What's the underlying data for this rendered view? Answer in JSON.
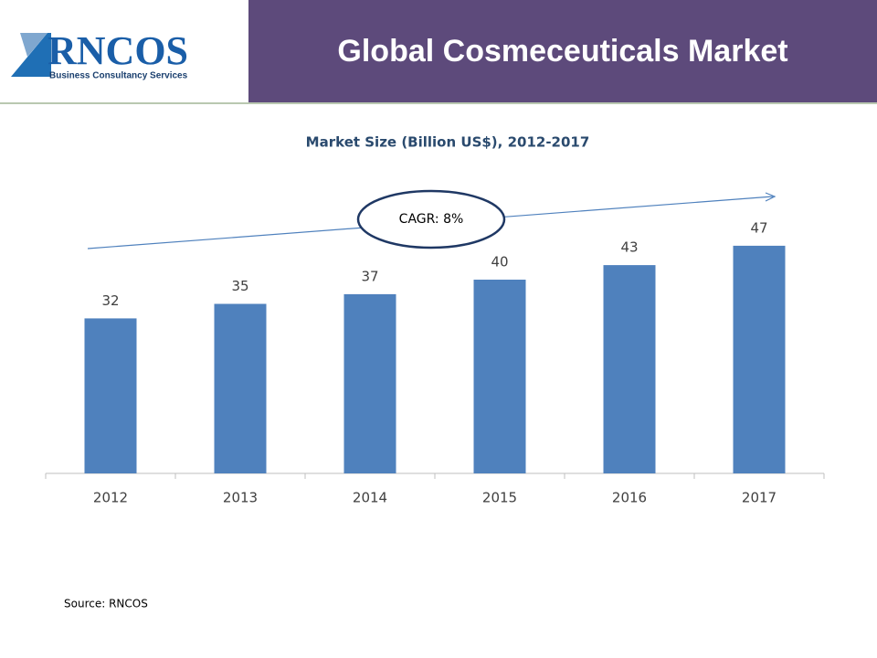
{
  "logo": {
    "name": "RNCOS",
    "tagline": "Business Consultancy Services"
  },
  "header": {
    "title": "Global Cosmeceuticals Market"
  },
  "chart_data": {
    "type": "bar",
    "title": "Market Size (Billion US$), 2012-2017",
    "categories": [
      "2012",
      "2013",
      "2014",
      "2015",
      "2016",
      "2017"
    ],
    "values": [
      32,
      35,
      37,
      40,
      43,
      47
    ],
    "color": "#4f81bd",
    "ylim": [
      0,
      50
    ],
    "annotation": "CAGR: 8%"
  },
  "source": "Source: RNCOS"
}
